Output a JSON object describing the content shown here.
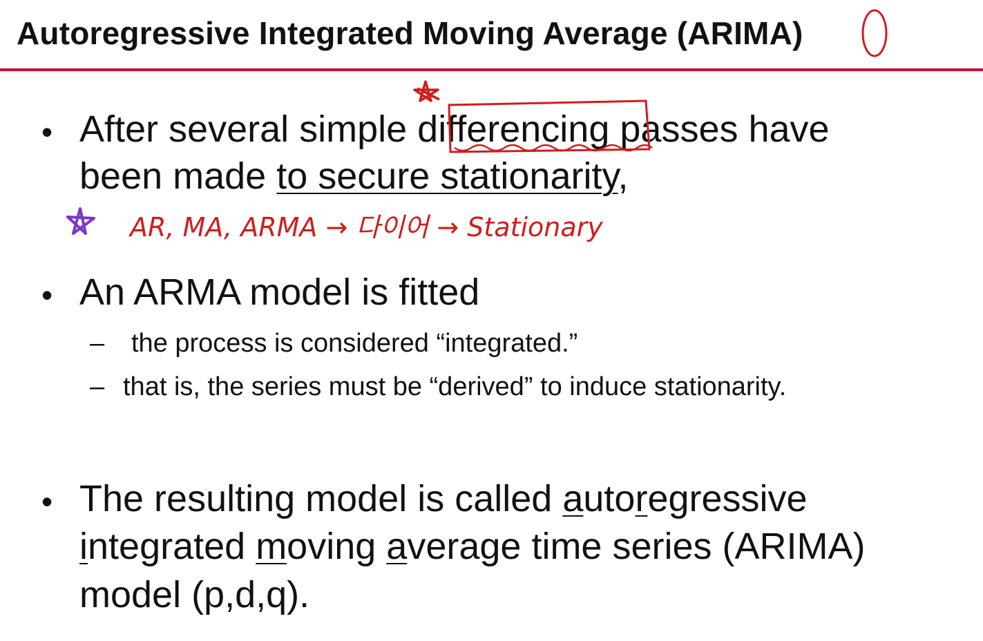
{
  "slide": {
    "title": "Autoregressive Integrated Moving Average (ARIMA)"
  },
  "bullets": {
    "b1_line1_pre": "After several simple ",
    "b1_line1_box": "differencing",
    "b1_line1_post": " passes have",
    "b1_line2_pre": "been made ",
    "b1_line2_underlined": "to secure stationarity",
    "b1_line2_post": ",",
    "b2_text": "An ARMA model is fitted",
    "b2_sub1": "the process is considered “integrated.”",
    "b2_sub2": "that is, the series must be “derived” to induce stationarity.",
    "b3_line1_pre": "The resulting model is called ",
    "b3_a": "a",
    "b3_uto": "uto",
    "b3_r": "r",
    "b3_egressive": "egressive",
    "b3_i": "i",
    "b3_ntegrated": "ntegrated ",
    "b3_m": "m",
    "b3_oving": "oving ",
    "b3_a2": "a",
    "b3_verage": "verage time series (ARIMA)",
    "b3_line3": "model  (p,d,q)."
  },
  "annotations": {
    "handwritten_note": "AR, MA, ARMA → 다이어 → Stationary"
  },
  "symbols": {
    "bullet": "•",
    "dash": "–"
  },
  "colors": {
    "accent_rule": "#c8102e",
    "ink_red": "#d11c1c",
    "ink_purple": "#7a35c8"
  }
}
